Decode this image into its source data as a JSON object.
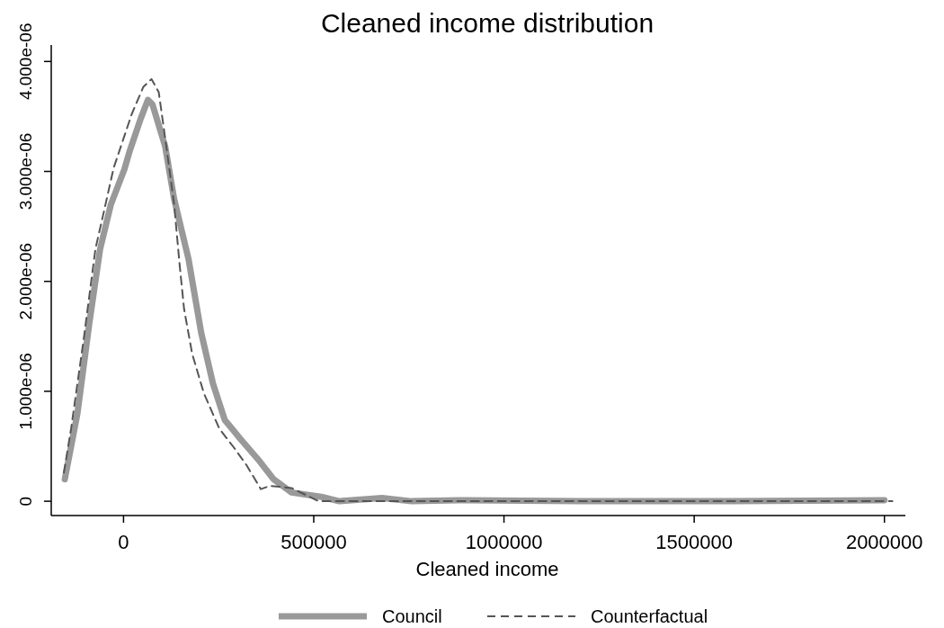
{
  "chart_data": {
    "type": "line",
    "title": "Cleaned income distribution",
    "xlabel": "Cleaned income",
    "xlim": [
      -190000,
      2055000
    ],
    "xticks": [
      0,
      500000,
      1000000,
      1500000,
      2000000
    ],
    "ylim": [
      -1.3e-07,
      4.15e-06
    ],
    "yticks": [
      0,
      {
        "value": 1e-06,
        "label": "1.000e-06"
      },
      {
        "value": 2e-06,
        "label": "2.000e-06"
      },
      {
        "value": 3e-06,
        "label": "3.000e-06"
      },
      {
        "value": 4e-06,
        "label": "4.000e-06"
      }
    ],
    "grid": false,
    "legend": "bottom",
    "marker": "none",
    "series": [
      {
        "name": "Council",
        "color": "#999999",
        "line_style": "solid",
        "x": [
          -154400,
          -121100,
          -90250,
          -61750,
          -33250,
          2400,
          16600,
          45100,
          64100,
          76000,
          109300,
          133000,
          171000,
          204300,
          235100,
          266000,
          306400,
          353900,
          394300,
          441800,
          520000,
          567600,
          679300,
          757600,
          900000,
          1200000,
          1600000,
          2000000
        ],
        "values": [
          2e-07,
          8e-07,
          1.61e-06,
          2.29e-06,
          2.7e-06,
          3.02e-06,
          3.19e-06,
          3.48e-06,
          3.65e-06,
          3.61e-06,
          3.23e-06,
          2.75e-06,
          2.2e-06,
          1.53e-06,
          1.07e-06,
          7.4e-07,
          5.7e-07,
          3.8e-07,
          2e-07,
          8e-08,
          4e-08,
          0,
          3e-08,
          0,
          1e-08,
          0,
          0,
          1e-08
        ]
      },
      {
        "name": "Counterfactual",
        "color": "#555555",
        "line_style": "dashed",
        "x": [
          -156800,
          -137800,
          -104500,
          -73600,
          -49900,
          -26100,
          21400,
          52300,
          73600,
          92600,
          111600,
          133000,
          147200,
          159100,
          180500,
          211400,
          251800,
          289800,
          323000,
          361000,
          384800,
          441800,
          513000,
          800000,
          1400000,
          2021000
        ],
        "values": [
          2.6e-07,
          6.6e-07,
          1.48e-06,
          2.3e-06,
          2.66e-06,
          3.03e-06,
          3.52e-06,
          3.77e-06,
          3.84e-06,
          3.72e-06,
          3.25e-06,
          2.7e-06,
          2.16e-06,
          1.75e-06,
          1.34e-06,
          9.8e-07,
          6.6e-07,
          4.9e-07,
          3.3e-07,
          1.1e-07,
          1.4e-07,
          1.2e-07,
          0,
          0,
          0,
          0
        ]
      }
    ]
  }
}
